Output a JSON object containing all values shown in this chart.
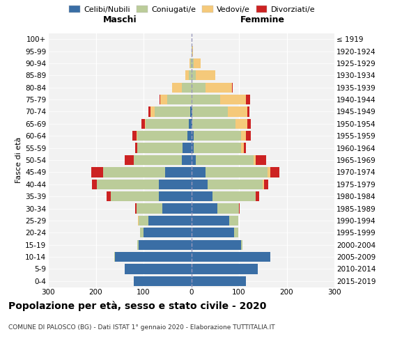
{
  "age_groups": [
    "0-4",
    "5-9",
    "10-14",
    "15-19",
    "20-24",
    "25-29",
    "30-34",
    "35-39",
    "40-44",
    "45-49",
    "50-54",
    "55-59",
    "60-64",
    "65-69",
    "70-74",
    "75-79",
    "80-84",
    "85-89",
    "90-94",
    "95-99",
    "100+"
  ],
  "birth_years": [
    "2015-2019",
    "2010-2014",
    "2005-2009",
    "2000-2004",
    "1995-1999",
    "1990-1994",
    "1985-1989",
    "1980-1984",
    "1975-1979",
    "1970-1974",
    "1965-1969",
    "1960-1964",
    "1955-1959",
    "1950-1954",
    "1945-1949",
    "1940-1944",
    "1935-1939",
    "1930-1934",
    "1925-1929",
    "1920-1924",
    "≤ 1919"
  ],
  "male_celibi": [
    120,
    140,
    160,
    110,
    100,
    90,
    60,
    68,
    68,
    55,
    20,
    18,
    8,
    5,
    2,
    0,
    0,
    0,
    0,
    0,
    0
  ],
  "male_coniugati": [
    0,
    0,
    2,
    3,
    8,
    20,
    55,
    100,
    130,
    130,
    100,
    95,
    105,
    90,
    75,
    50,
    20,
    5,
    2,
    0,
    0
  ],
  "male_vedovi": [
    0,
    0,
    0,
    0,
    0,
    2,
    0,
    0,
    0,
    0,
    0,
    0,
    2,
    2,
    8,
    15,
    20,
    8,
    2,
    0,
    0
  ],
  "male_divorziati": [
    0,
    0,
    0,
    0,
    0,
    0,
    2,
    10,
    10,
    25,
    20,
    5,
    8,
    8,
    5,
    2,
    0,
    0,
    0,
    0,
    0
  ],
  "female_nubili": [
    115,
    140,
    165,
    105,
    90,
    80,
    55,
    45,
    35,
    30,
    10,
    5,
    5,
    2,
    2,
    0,
    0,
    0,
    0,
    0,
    0
  ],
  "female_coniugate": [
    0,
    0,
    0,
    2,
    8,
    18,
    45,
    90,
    115,
    130,
    120,
    100,
    100,
    90,
    75,
    60,
    30,
    10,
    5,
    2,
    0
  ],
  "female_vedove": [
    0,
    0,
    0,
    0,
    0,
    0,
    0,
    0,
    2,
    5,
    5,
    5,
    10,
    25,
    40,
    55,
    55,
    40,
    15,
    2,
    0
  ],
  "female_divorziate": [
    0,
    0,
    0,
    0,
    0,
    0,
    2,
    8,
    10,
    20,
    22,
    5,
    10,
    8,
    5,
    8,
    2,
    0,
    0,
    0,
    0
  ],
  "color_celibi": "#3A6EA5",
  "color_coniugati": "#BBCC99",
  "color_vedovi": "#F5C97A",
  "color_divorziati": "#CC2222",
  "xlim": 300,
  "title": "Popolazione per età, sesso e stato civile - 2020",
  "subtitle": "COMUNE DI PALOSCO (BG) - Dati ISTAT 1° gennaio 2020 - Elaborazione TUTTITALIA.IT",
  "ylabel_left": "Fasce di età",
  "label_maschi": "Maschi",
  "label_femmine": "Femmine",
  "legend_labels": [
    "Celibi/Nubili",
    "Coniugati/e",
    "Vedovi/e",
    "Divorziati/e"
  ],
  "bg_color": "#FFFFFF",
  "plot_bg_color": "#F2F2F2",
  "xticks": [
    -300,
    -200,
    -100,
    0,
    100,
    200,
    300
  ]
}
